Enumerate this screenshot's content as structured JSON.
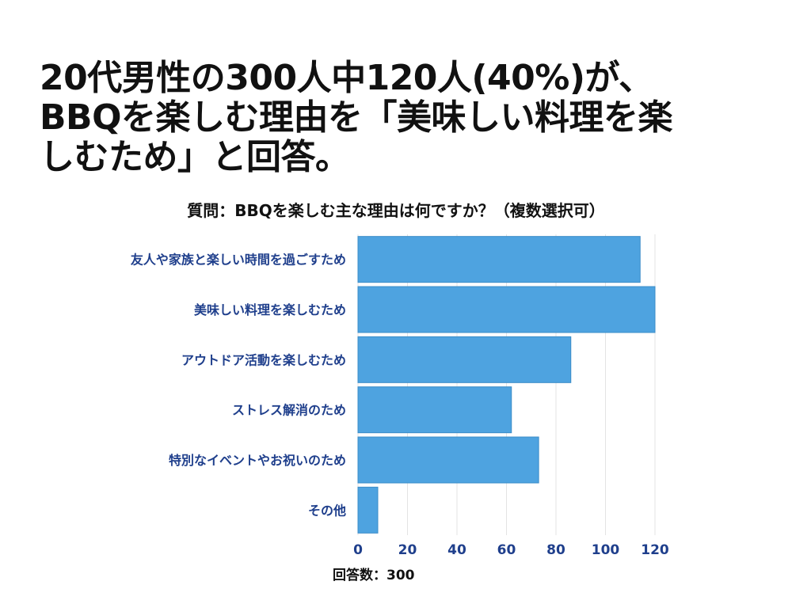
{
  "headline": {
    "line1": "20代男性の300人中120人(40%)が、",
    "line2": "BBQを楽しむ理由を「美味しい料理を楽",
    "line3": "しむため」と回答。"
  },
  "footnote": "回答数：300",
  "colors": {
    "bar": "#4ea3e0",
    "bar_edge": "#3b8cc8",
    "label": "#1f3f8c",
    "grid": "#e3e3e3",
    "text": "#111111"
  },
  "chart_data": {
    "type": "bar",
    "orientation": "horizontal",
    "title": "質問：BBQを楽しむ主な理由は何ですか？（複数選択可）",
    "categories": [
      "友人や家族と楽しい時間を過ごすため",
      "美味しい料理を楽しむため",
      "アウトドア活動を楽しむため",
      "ストレス解消のため",
      "特別なイベントやお祝いのため",
      "その他"
    ],
    "values": [
      114,
      120,
      86,
      62,
      73,
      8
    ],
    "xlim": [
      0,
      120
    ],
    "xticks": [
      0,
      20,
      40,
      60,
      80,
      100,
      120
    ],
    "xlabel": "",
    "ylabel": "",
    "grid": true
  }
}
